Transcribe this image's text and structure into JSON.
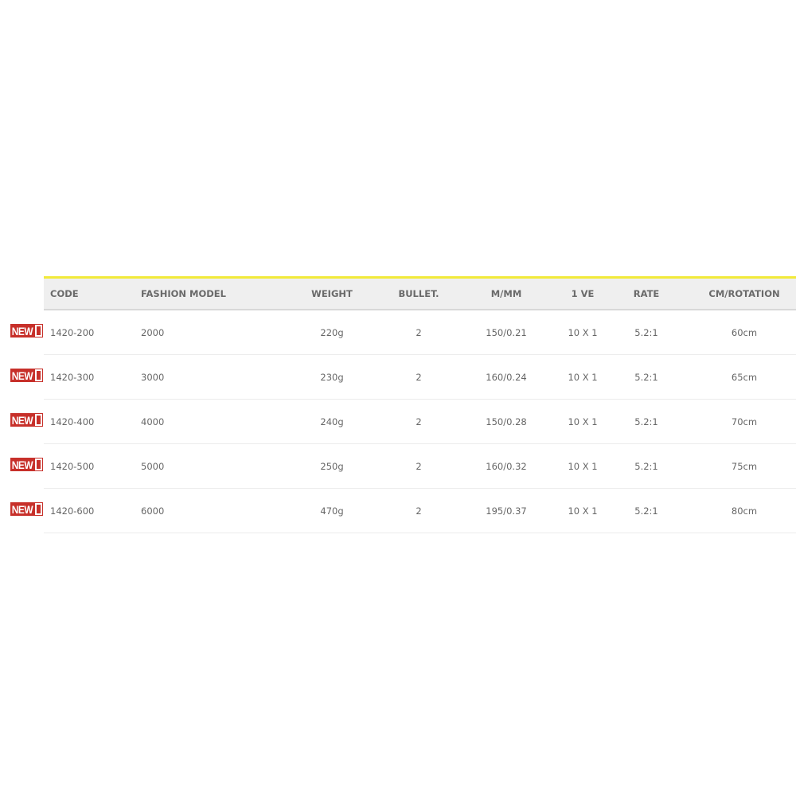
{
  "table": {
    "accent_color": "#f2ea3a",
    "badge_color": "#c7302a",
    "headers": [
      "CODE",
      "FASHION MODEL",
      "WEIGHT",
      "BULLET.",
      "M/MM",
      "1 VE",
      "RATE",
      "CM/ROTATION"
    ],
    "rows": [
      {
        "badge": "NEW",
        "cells": [
          "1420-200",
          "2000",
          "220g",
          "2",
          "150/0.21",
          "10 X 1",
          "5.2:1",
          "60cm"
        ]
      },
      {
        "badge": "NEW",
        "cells": [
          "1420-300",
          "3000",
          "230g",
          "2",
          "160/0.24",
          "10 X 1",
          "5.2:1",
          "65cm"
        ]
      },
      {
        "badge": "NEW",
        "cells": [
          "1420-400",
          "4000",
          "240g",
          "2",
          "150/0.28",
          "10 X 1",
          "5.2:1",
          "70cm"
        ]
      },
      {
        "badge": "NEW",
        "cells": [
          "1420-500",
          "5000",
          "250g",
          "2",
          "160/0.32",
          "10 X 1",
          "5.2:1",
          "75cm"
        ]
      },
      {
        "badge": "NEW",
        "cells": [
          "1420-600",
          "6000",
          "470g",
          "2",
          "195/0.37",
          "10 X 1",
          "5.2:1",
          "80cm"
        ]
      }
    ]
  }
}
